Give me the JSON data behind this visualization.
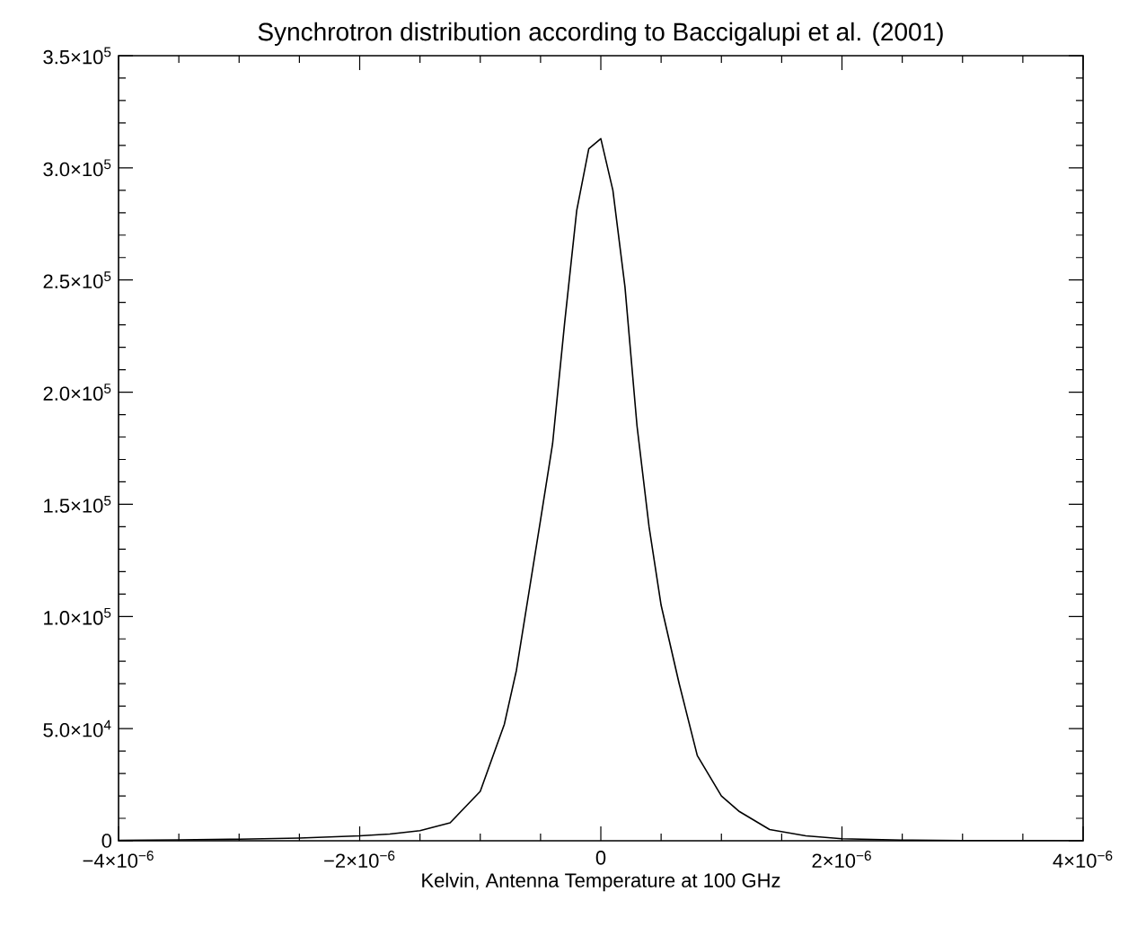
{
  "chart_data": {
    "type": "line",
    "title": "Synchrotron distribution according to Baccigalupi et al. (2001)",
    "xlabel": "Kelvin, Antenna Temperature at 100 GHz",
    "x": [
      -4e-06,
      -3.5e-06,
      -3e-06,
      -2.5e-06,
      -2e-06,
      -1.75e-06,
      -1.5e-06,
      -1.25e-06,
      -1e-06,
      -8e-07,
      -7e-07,
      -5e-07,
      -4e-07,
      -3e-07,
      -2e-07,
      -1e-07,
      0,
      1e-07,
      2e-07,
      3e-07,
      4e-07,
      5e-07,
      6.5e-07,
      8e-07,
      1e-06,
      1.15e-06,
      1.4e-06,
      1.7e-06,
      2e-06,
      2.5e-06,
      3e-06,
      3.5e-06,
      4e-06
    ],
    "series": [
      {
        "color": "#000000",
        "values": [
          200,
          400,
          700,
          1200,
          2200,
          3000,
          4500,
          8000,
          22000,
          52000,
          76000,
          143000,
          177000,
          231000,
          281000,
          308500,
          313000,
          290000,
          247000,
          185000,
          140000,
          105000,
          70000,
          38000,
          20000,
          13000,
          5000,
          2200,
          900,
          300,
          100,
          50,
          0
        ]
      }
    ],
    "xlim": [
      -4e-06,
      4e-06
    ],
    "ylim": [
      0,
      350000
    ],
    "xticks": [
      {
        "value": -4e-06,
        "label": "−4×10$^{−6}$"
      },
      {
        "value": -2e-06,
        "label": "−2×10$^{−6}$"
      },
      0,
      {
        "value": 2e-06,
        "label": "2×10$^{−6}$"
      },
      {
        "value": 4e-06,
        "label": "4×10$^{−6}$"
      }
    ],
    "yticks": [
      0,
      {
        "value": 50000,
        "label": "5.0×10$^{4}$"
      },
      {
        "value": 100000,
        "label": "1.0×10$^{5}$"
      },
      {
        "value": 150000,
        "label": "1.5×10$^{5}$"
      },
      {
        "value": 200000,
        "label": "2.0×10$^{5}$"
      },
      {
        "value": 250000,
        "label": "2.5×10$^{5}$"
      },
      {
        "value": 300000,
        "label": "3.0×10$^{5}$"
      },
      {
        "value": 350000,
        "label": "3.5×10$^{5}$"
      }
    ],
    "grid": false,
    "marker": "none",
    "line_style": "solid"
  }
}
